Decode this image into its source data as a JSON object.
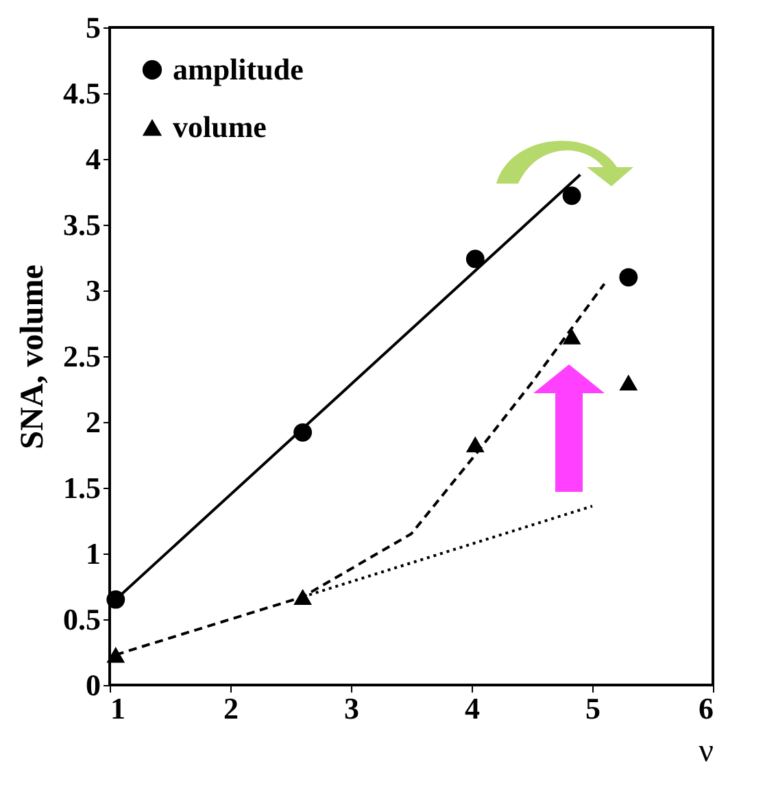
{
  "chart_data": {
    "type": "scatter",
    "xlabel": "ν",
    "ylabel": "SNA, volume",
    "xlim": [
      1,
      6
    ],
    "xticks": [
      1,
      2,
      3,
      4,
      5,
      6
    ],
    "ylim": [
      0,
      5
    ],
    "yticks": [
      0,
      0.5,
      1,
      1.5,
      2,
      2.5,
      3,
      3.5,
      4,
      4.5,
      5
    ],
    "grid": false,
    "legend": "top left",
    "series": [
      {
        "name": "amplitude",
        "color": "#000000",
        "marker": "circle",
        "x": [
          1.05,
          2.6,
          4.03,
          4.83,
          5.3
        ],
        "values": [
          0.65,
          1.92,
          3.24,
          3.72,
          3.1
        ]
      },
      {
        "name": "volume",
        "color": "#000000",
        "marker": "triangle",
        "x": [
          1.05,
          2.6,
          4.03,
          4.83,
          5.3
        ],
        "values": [
          0.23,
          0.67,
          1.83,
          2.65,
          2.3
        ]
      },
      {
        "type": "line",
        "color": "#000000",
        "line_style": "solid",
        "x": [
          1.05,
          4.9
        ],
        "values": [
          0.65,
          3.88
        ]
      },
      {
        "type": "line",
        "color": "#000000",
        "line_style": "dashed",
        "x": [
          1.05,
          2.6,
          3.5,
          4.03,
          4.5,
          5.1
        ],
        "values": [
          0.23,
          0.67,
          1.15,
          1.75,
          2.3,
          3.05
        ]
      },
      {
        "type": "line",
        "color": "#000000",
        "line_style": "dotted",
        "x": [
          2.6,
          5.0
        ],
        "values": [
          0.67,
          1.36
        ]
      }
    ]
  }
}
